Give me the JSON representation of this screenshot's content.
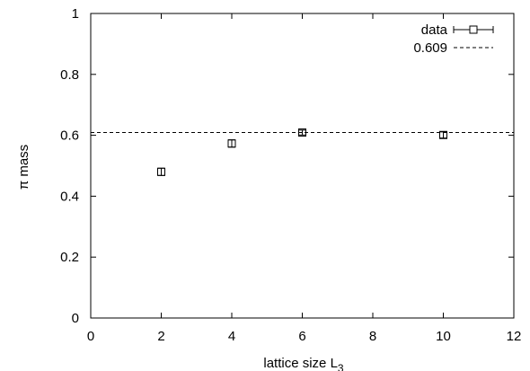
{
  "chart_data": {
    "type": "scatter",
    "xlabel": "lattice size L",
    "xlabel_subscript": "3",
    "ylabel": "π mass",
    "xlim": [
      0,
      12
    ],
    "ylim": [
      0,
      1
    ],
    "x_ticks": [
      "0",
      "2",
      "4",
      "6",
      "8",
      "10",
      "12"
    ],
    "y_ticks": [
      "0",
      "0.2",
      "0.4",
      "0.6",
      "0.8",
      "1"
    ],
    "grid": false,
    "legend_position": "top-right",
    "series": [
      {
        "name": "data",
        "marker": "open-square-with-errorbars",
        "points": [
          {
            "x": 2,
            "y": 0.48,
            "err": 0.012
          },
          {
            "x": 4,
            "y": 0.573,
            "err": 0.012
          },
          {
            "x": 6,
            "y": 0.609,
            "err": 0.008
          },
          {
            "x": 10,
            "y": 0.601,
            "err": 0.01
          }
        ]
      },
      {
        "name": "0.609",
        "style": "dashed-horizontal-line",
        "y": 0.609
      }
    ],
    "colors": {
      "foreground": "#000000",
      "background": "#ffffff"
    }
  }
}
